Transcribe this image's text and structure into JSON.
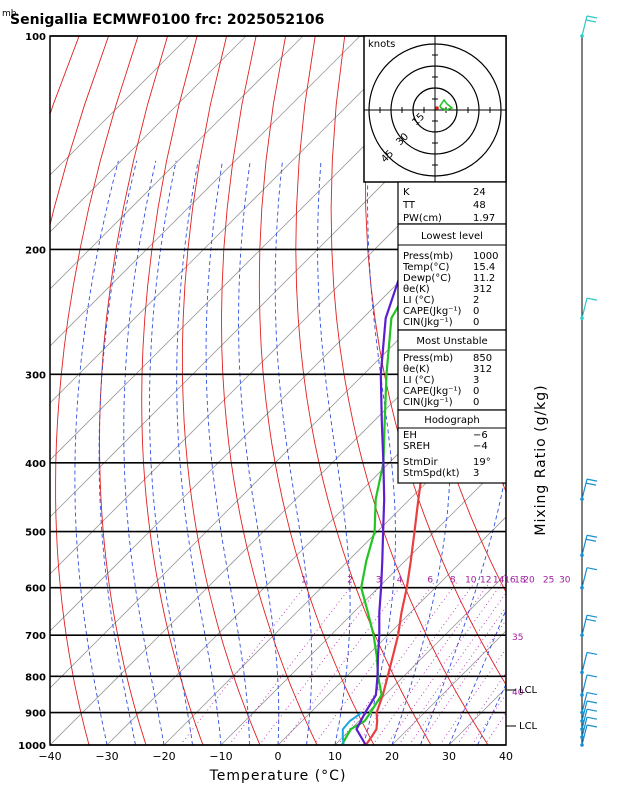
{
  "header": {
    "unit_mb": "mb",
    "title": "Senigallia ECMWF0100 frc: 2025052106"
  },
  "axes": {
    "xlabel": "Temperature (°C)",
    "right_label": "Mixing Ratio (g/kg)",
    "pressure_ticks": [
      "100",
      "200",
      "300",
      "400",
      "500",
      "600",
      "700",
      "800",
      "900",
      "1000"
    ],
    "temp_ticks": [
      "−40",
      "−30",
      "−20",
      "−10",
      "0",
      "10",
      "20",
      "30",
      "40"
    ],
    "mixing_ratio_labels": [
      "1",
      "2",
      "3",
      "4",
      "6",
      "8",
      "10",
      "12",
      "14",
      "16",
      "18",
      "20",
      "25",
      "30"
    ],
    "side_labels": [
      "35",
      "40"
    ],
    "lcl_labels": [
      "LCL",
      "LCL"
    ]
  },
  "hodograph": {
    "unit": "knots",
    "ring_labels": [
      "15",
      "30",
      "45"
    ]
  },
  "indices": {
    "top": [
      {
        "k": "K",
        "v": "24"
      },
      {
        "k": "TT",
        "v": "48"
      },
      {
        "k": "PW(cm)",
        "v": "1.97"
      }
    ],
    "lowest_level": {
      "heading": "Lowest level",
      "rows": [
        {
          "k": "Press(mb)",
          "v": "1000"
        },
        {
          "k": "Temp(°C)",
          "v": "15.4"
        },
        {
          "k": "Dewp(°C)",
          "v": "11.2"
        },
        {
          "k": "θe(K)",
          "v": "312"
        },
        {
          "k": "LI (°C)",
          "v": "2"
        },
        {
          "k": "CAPE(Jkg⁻¹)",
          "v": "0"
        },
        {
          "k": "CIN(Jkg⁻¹)",
          "v": "0"
        }
      ]
    },
    "most_unstable": {
      "heading": "Most Unstable",
      "rows": [
        {
          "k": "Press(mb)",
          "v": "850"
        },
        {
          "k": "θe(K)",
          "v": "312"
        },
        {
          "k": "LI (°C)",
          "v": "3"
        },
        {
          "k": "CAPE(Jkg⁻¹)",
          "v": "0"
        },
        {
          "k": "CIN(Jkg⁻¹)",
          "v": "0"
        }
      ]
    },
    "hodograph": {
      "heading": "Hodograph",
      "rows": [
        {
          "k": "EH",
          "v": "−6"
        },
        {
          "k": "SREH",
          "v": "−4"
        },
        {
          "k": "StmDir",
          "v": "19°"
        },
        {
          "k": "StmSpd(kt)",
          "v": "3"
        }
      ]
    }
  },
  "colors": {
    "temperature": "#e84040",
    "dewpoint": "#22c322",
    "parcel": "#5b1fd0",
    "dry_adiabat": "#e02020",
    "moist_adiabat": "#3050e0",
    "mixing_ratio": "#b020b0",
    "isotherm": "#9a9a9a",
    "lowlevel": "#18a8e0",
    "barbs": "#1890d0"
  },
  "chart_data": {
    "type": "line",
    "title": "Senigallia ECMWF0100 frc: 2025052106",
    "xlabel": "Temperature (°C)",
    "ylabel": "",
    "xlim": [
      -40,
      40
    ],
    "ylim": [
      1000,
      100
    ],
    "y_scale": "log",
    "skew": "45°",
    "series": [
      {
        "points": [
          [
            1000,
            15.4
          ],
          [
            975,
            15
          ],
          [
            950,
            14.5
          ],
          [
            925,
            13.2
          ],
          [
            900,
            11.6
          ],
          [
            850,
            9.6
          ],
          [
            800,
            7.2
          ],
          [
            750,
            4.6
          ],
          [
            700,
            1.8
          ],
          [
            650,
            -1.6
          ],
          [
            600,
            -5
          ],
          [
            550,
            -9
          ],
          [
            500,
            -13.5
          ],
          [
            450,
            -18.5
          ],
          [
            400,
            -24
          ],
          [
            350,
            -30.5
          ],
          [
            300,
            -38
          ],
          [
            250,
            -47
          ],
          [
            200,
            -49
          ],
          [
            150,
            -53
          ],
          [
            100,
            -55
          ]
        ]
      },
      {
        "points": [
          [
            1000,
            11.2
          ],
          [
            975,
            10.6
          ],
          [
            950,
            10
          ],
          [
            925,
            11
          ],
          [
            900,
            10.5
          ],
          [
            850,
            9.4
          ],
          [
            800,
            5.5
          ],
          [
            750,
            1.8
          ],
          [
            700,
            -2.5
          ],
          [
            650,
            -7.5
          ],
          [
            600,
            -13
          ],
          [
            550,
            -16.8
          ],
          [
            500,
            -20.5
          ],
          [
            450,
            -26
          ],
          [
            400,
            -31
          ],
          [
            350,
            -38
          ],
          [
            300,
            -46
          ],
          [
            250,
            -55
          ],
          [
            200,
            -60
          ],
          [
            150,
            -67
          ],
          [
            100,
            -70
          ]
        ]
      },
      {
        "points": [
          [
            1000,
            15.4
          ],
          [
            950,
            11
          ],
          [
            900,
            9.6
          ],
          [
            850,
            8.4
          ],
          [
            800,
            5.4
          ],
          [
            750,
            2
          ],
          [
            700,
            -1.5
          ],
          [
            650,
            -5.5
          ],
          [
            600,
            -9.5
          ],
          [
            550,
            -14
          ],
          [
            500,
            -19
          ],
          [
            450,
            -24.5
          ],
          [
            400,
            -31
          ],
          [
            350,
            -38.5
          ],
          [
            300,
            -47
          ],
          [
            250,
            -56
          ],
          [
            200,
            -64
          ],
          [
            150,
            -74
          ],
          [
            100,
            -86
          ]
        ]
      },
      {
        "points": [
          [
            1000,
            11.5
          ],
          [
            975,
            10
          ],
          [
            950,
            8.6
          ],
          [
            925,
            8.4
          ],
          [
            900,
            9
          ]
        ]
      }
    ]
  }
}
